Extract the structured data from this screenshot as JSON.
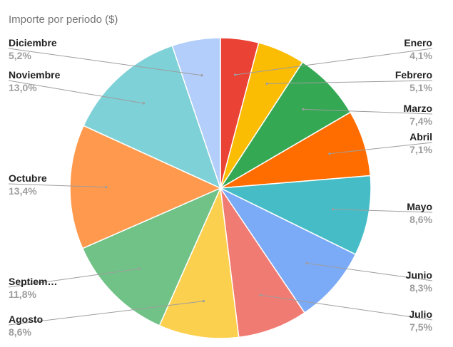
{
  "chart_data": {
    "type": "pie",
    "title": "Importe por periodo ($)",
    "legend": "labels-beside-slices",
    "slices": [
      {
        "name": "Enero",
        "value": 4.1,
        "label": "4,1%",
        "color": "#EA4335"
      },
      {
        "name": "Febrero",
        "value": 5.1,
        "label": "5,1%",
        "color": "#FBBC04"
      },
      {
        "name": "Marzo",
        "value": 7.4,
        "label": "7,4%",
        "color": "#34A853"
      },
      {
        "name": "Abril",
        "value": 7.1,
        "label": "7,1%",
        "color": "#FF6D01"
      },
      {
        "name": "Mayo",
        "value": 8.6,
        "label": "8,6%",
        "color": "#46BDC6"
      },
      {
        "name": "Junio",
        "value": 8.3,
        "label": "8,3%",
        "color": "#7BAAF7"
      },
      {
        "name": "Julio",
        "value": 7.5,
        "label": "7,5%",
        "color": "#F07B72"
      },
      {
        "name": "Agosto",
        "value": 8.6,
        "label": "8,6%",
        "color": "#FCD04F"
      },
      {
        "name": "Septiem…",
        "value": 11.8,
        "label": "11,8%",
        "color": "#71C287"
      },
      {
        "name": "Octubre",
        "value": 13.4,
        "label": "13,4%",
        "color": "#FF994D"
      },
      {
        "name": "Noviembre",
        "value": 13.0,
        "label": "13,0%",
        "color": "#7ED1D7"
      },
      {
        "name": "Diciembre",
        "value": 5.2,
        "label": "5,2%",
        "color": "#B3CEFB"
      }
    ]
  }
}
